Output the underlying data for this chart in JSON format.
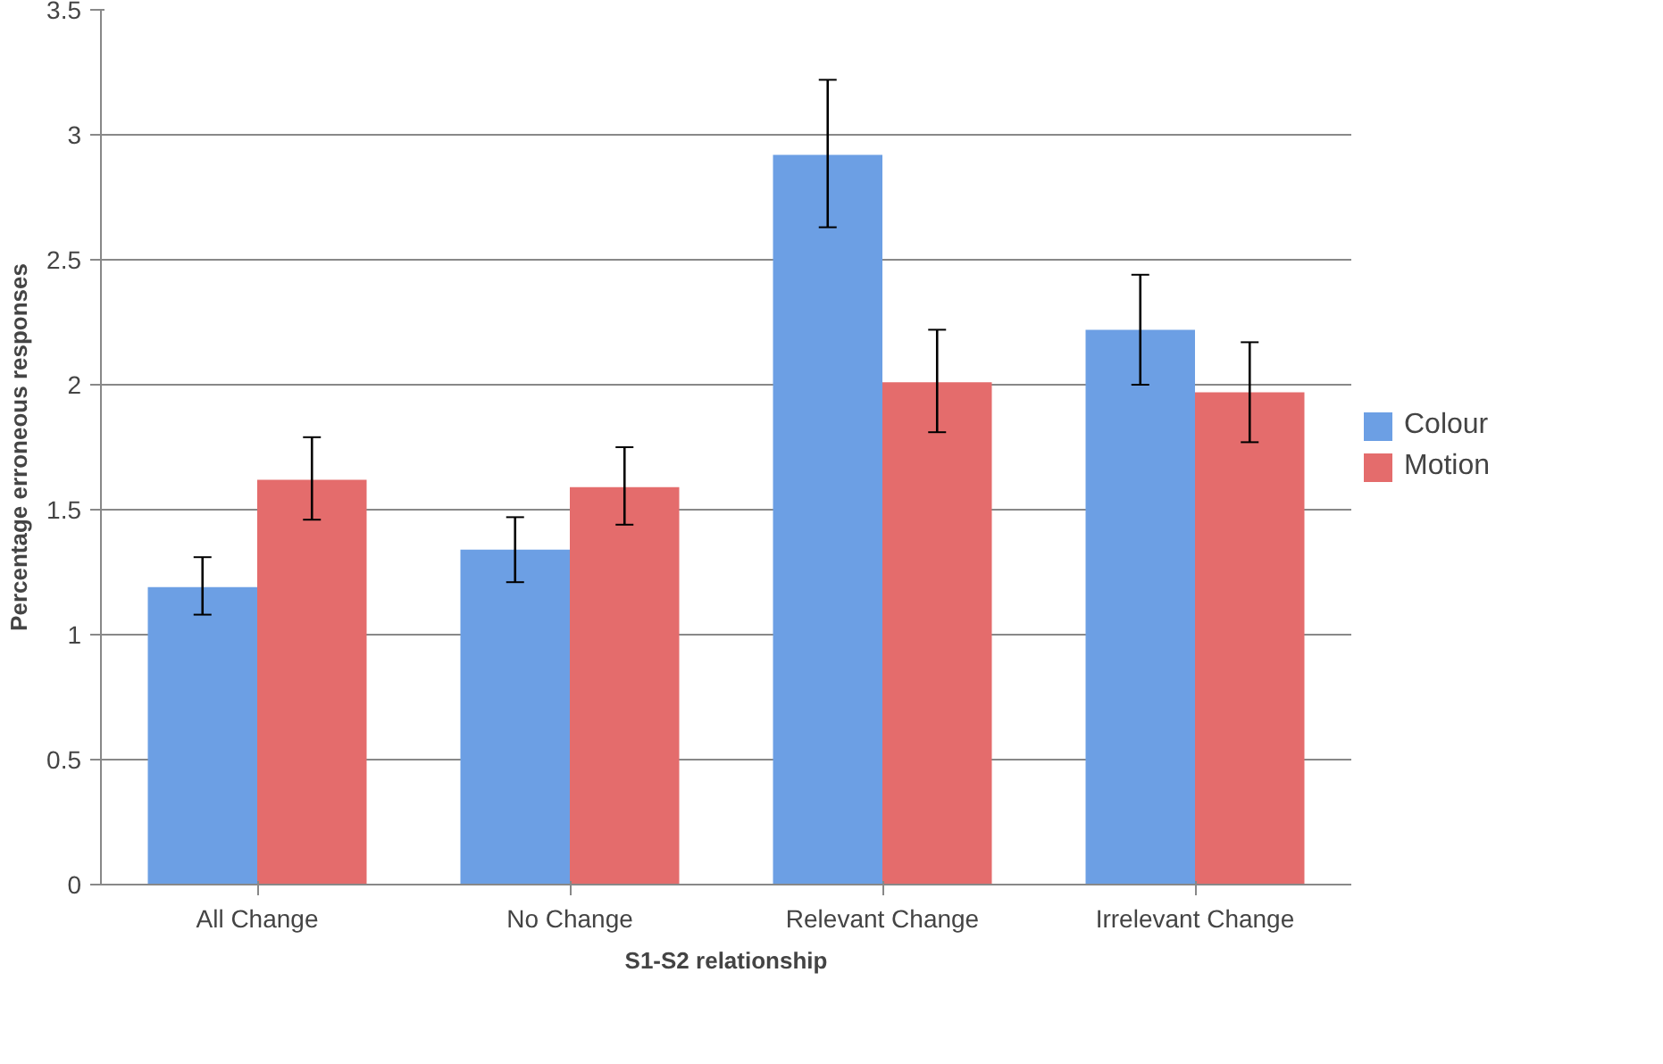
{
  "chart_data": {
    "type": "bar",
    "xlabel": "S1-S2 relationship",
    "ylabel": "Percentage erroneous responses",
    "categories": [
      "All Change",
      "No Change",
      "Relevant Change",
      "Irrelevant Change"
    ],
    "series": [
      {
        "name": "Colour",
        "color": "#6c9fe4",
        "values": [
          1.19,
          1.34,
          2.92,
          2.22
        ],
        "errors": [
          [
            1.08,
            1.31
          ],
          [
            1.21,
            1.47
          ],
          [
            2.63,
            3.22
          ],
          [
            2.0,
            2.44
          ]
        ]
      },
      {
        "name": "Motion",
        "color": "#e46c6c",
        "values": [
          1.62,
          1.59,
          2.01,
          1.97
        ],
        "errors": [
          [
            1.46,
            1.79
          ],
          [
            1.44,
            1.75
          ],
          [
            1.81,
            2.22
          ],
          [
            1.77,
            2.17
          ]
        ]
      }
    ],
    "ylim": [
      0,
      3.5
    ],
    "yticks": [
      0,
      0.5,
      1,
      1.5,
      2,
      2.5,
      3,
      3.5
    ],
    "grid": "y",
    "legend": "right"
  }
}
